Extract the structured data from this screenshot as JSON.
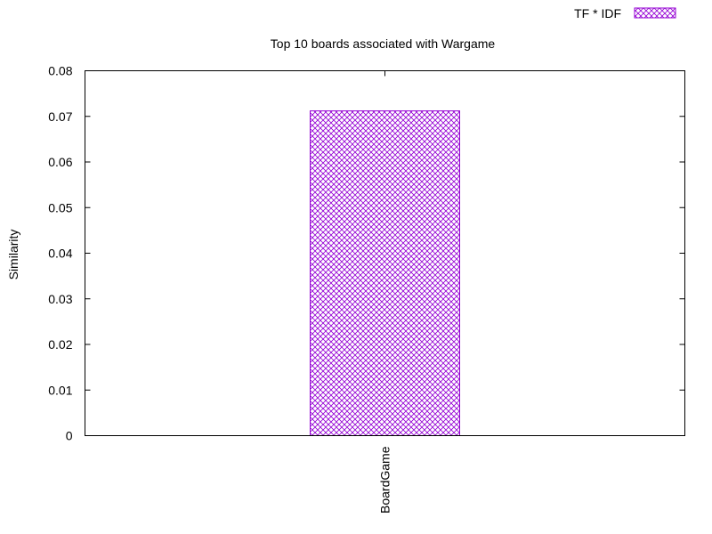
{
  "chart_data": {
    "type": "bar",
    "title": "Top 10 boards associated with Wargame",
    "ylabel": "Similarity",
    "xlabel": "",
    "categories": [
      "BoardGame"
    ],
    "series": [
      {
        "name": "TF * IDF",
        "values": [
          0.0712
        ]
      }
    ],
    "ylim": [
      0,
      0.08
    ],
    "yticks": [
      "0",
      "0.01",
      "0.02",
      "0.03",
      "0.04",
      "0.05",
      "0.06",
      "0.07",
      "0.08"
    ],
    "grid": false,
    "legend_position": "top-right",
    "bar_color": "#9400d3",
    "bar_pattern": "crosshatch"
  }
}
